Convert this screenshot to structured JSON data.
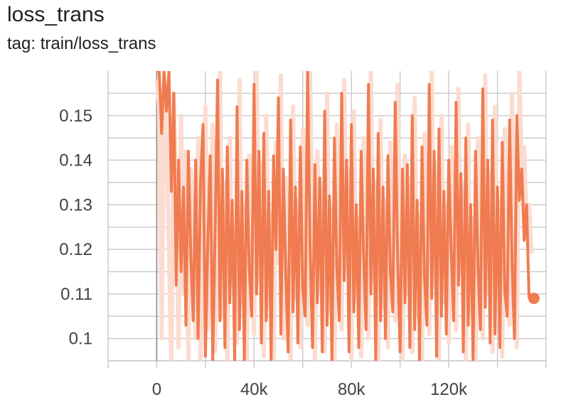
{
  "header": {
    "title": "loss_trans",
    "subtitle": "tag: train/loss_trans"
  },
  "colors": {
    "smoothed_line": "#f07b50",
    "raw_line": "#fcdcd0",
    "grid": "#cccccc",
    "zero_line": "#9e9e9e",
    "tick_text": "#424242"
  },
  "chart_data": {
    "type": "line",
    "title": "loss_trans",
    "subtitle": "tag: train/loss_trans",
    "xlabel": "",
    "ylabel": "",
    "xlim": [
      -20000,
      160000
    ],
    "ylim": [
      0.095,
      0.16
    ],
    "x_ticks": [
      0,
      40000,
      80000,
      120000
    ],
    "x_tick_labels": [
      "0",
      "40k",
      "80k",
      "120k"
    ],
    "y_ticks": [
      0.1,
      0.11,
      0.12,
      0.13,
      0.14,
      0.15
    ],
    "y_tick_labels": [
      "0.1",
      "0.11",
      "0.12",
      "0.13",
      "0.14",
      "0.15"
    ],
    "grid": true,
    "legend": "none",
    "step_interval": 1000,
    "last_point": [
      155000,
      0.109
    ],
    "series": [
      {
        "role": "raw",
        "values": [
          0.158,
          0.152,
          0.1,
          0.16,
          0.145,
          0.12,
          0.093,
          0.155,
          0.128,
          0.098,
          0.15,
          0.11,
          0.142,
          0.095,
          0.138,
          0.118,
          0.1,
          0.145,
          0.093,
          0.132,
          0.152,
          0.102,
          0.119,
          0.148,
          0.097,
          0.127,
          0.16,
          0.105,
          0.135,
          0.093,
          0.145,
          0.112,
          0.125,
          0.099,
          0.158,
          0.108,
          0.13,
          0.094,
          0.141,
          0.122,
          0.101,
          0.16,
          0.113,
          0.139,
          0.096,
          0.15,
          0.107,
          0.128,
          0.093,
          0.144,
          0.117,
          0.159,
          0.1,
          0.136,
          0.121,
          0.094,
          0.152,
          0.109,
          0.131,
          0.098,
          0.147,
          0.114,
          0.103,
          0.16,
          0.124,
          0.095,
          0.142,
          0.111,
          0.134,
          0.097,
          0.155,
          0.106,
          0.129,
          0.093,
          0.148,
          0.119,
          0.102,
          0.158,
          0.116,
          0.138,
          0.094,
          0.151,
          0.109,
          0.127,
          0.096,
          0.145,
          0.122,
          0.1,
          0.16,
          0.113,
          0.135,
          0.093,
          0.149,
          0.107,
          0.131,
          0.098,
          0.144,
          0.118,
          0.104,
          0.157,
          0.121,
          0.095,
          0.141,
          0.11,
          0.136,
          0.097,
          0.154,
          0.105,
          0.128,
          0.093,
          0.146,
          0.117,
          0.101,
          0.16,
          0.112,
          0.139,
          0.094,
          0.15,
          0.108,
          0.13,
          0.099,
          0.143,
          0.123,
          0.102,
          0.156,
          0.115,
          0.134,
          0.095,
          0.148,
          0.106,
          0.127,
          0.093,
          0.145,
          0.119,
          0.1,
          0.159,
          0.11,
          0.137,
          0.097,
          0.152,
          0.104,
          0.131,
          0.096,
          0.147,
          0.114,
          0.103,
          0.155,
          0.12,
          0.098,
          0.16,
          0.138,
          0.143,
          0.125,
          0.13,
          0.119
        ]
      },
      {
        "role": "smoothed",
        "values": [
          0.16,
          0.16,
          0.146,
          0.16,
          0.151,
          0.16,
          0.133,
          0.155,
          0.112,
          0.14,
          0.115,
          0.134,
          0.103,
          0.142,
          0.118,
          0.104,
          0.14,
          0.1,
          0.135,
          0.148,
          0.096,
          0.122,
          0.141,
          0.095,
          0.125,
          0.158,
          0.104,
          0.138,
          0.098,
          0.143,
          0.108,
          0.131,
          0.095,
          0.152,
          0.102,
          0.133,
          0.095,
          0.14,
          0.116,
          0.105,
          0.157,
          0.11,
          0.142,
          0.099,
          0.146,
          0.104,
          0.133,
          0.095,
          0.141,
          0.12,
          0.154,
          0.101,
          0.138,
          0.115,
          0.097,
          0.149,
          0.106,
          0.134,
          0.099,
          0.143,
          0.111,
          0.105,
          0.16,
          0.121,
          0.098,
          0.139,
          0.108,
          0.136,
          0.097,
          0.151,
          0.103,
          0.132,
          0.095,
          0.145,
          0.116,
          0.104,
          0.155,
          0.113,
          0.14,
          0.097,
          0.148,
          0.106,
          0.13,
          0.098,
          0.142,
          0.119,
          0.102,
          0.157,
          0.11,
          0.138,
          0.095,
          0.146,
          0.104,
          0.134,
          0.1,
          0.141,
          0.115,
          0.106,
          0.153,
          0.118,
          0.097,
          0.138,
          0.108,
          0.139,
          0.098,
          0.15,
          0.102,
          0.131,
          0.095,
          0.143,
          0.114,
          0.103,
          0.157,
          0.109,
          0.142,
          0.096,
          0.147,
          0.105,
          0.133,
          0.101,
          0.14,
          0.12,
          0.104,
          0.153,
          0.112,
          0.137,
          0.097,
          0.145,
          0.103,
          0.13,
          0.095,
          0.142,
          0.116,
          0.102,
          0.156,
          0.107,
          0.14,
          0.099,
          0.149,
          0.101,
          0.134,
          0.098,
          0.144,
          0.111,
          0.105,
          0.149,
          0.117,
          0.1,
          0.15,
          0.131,
          0.138,
          0.122,
          0.13,
          0.109
        ]
      }
    ]
  }
}
